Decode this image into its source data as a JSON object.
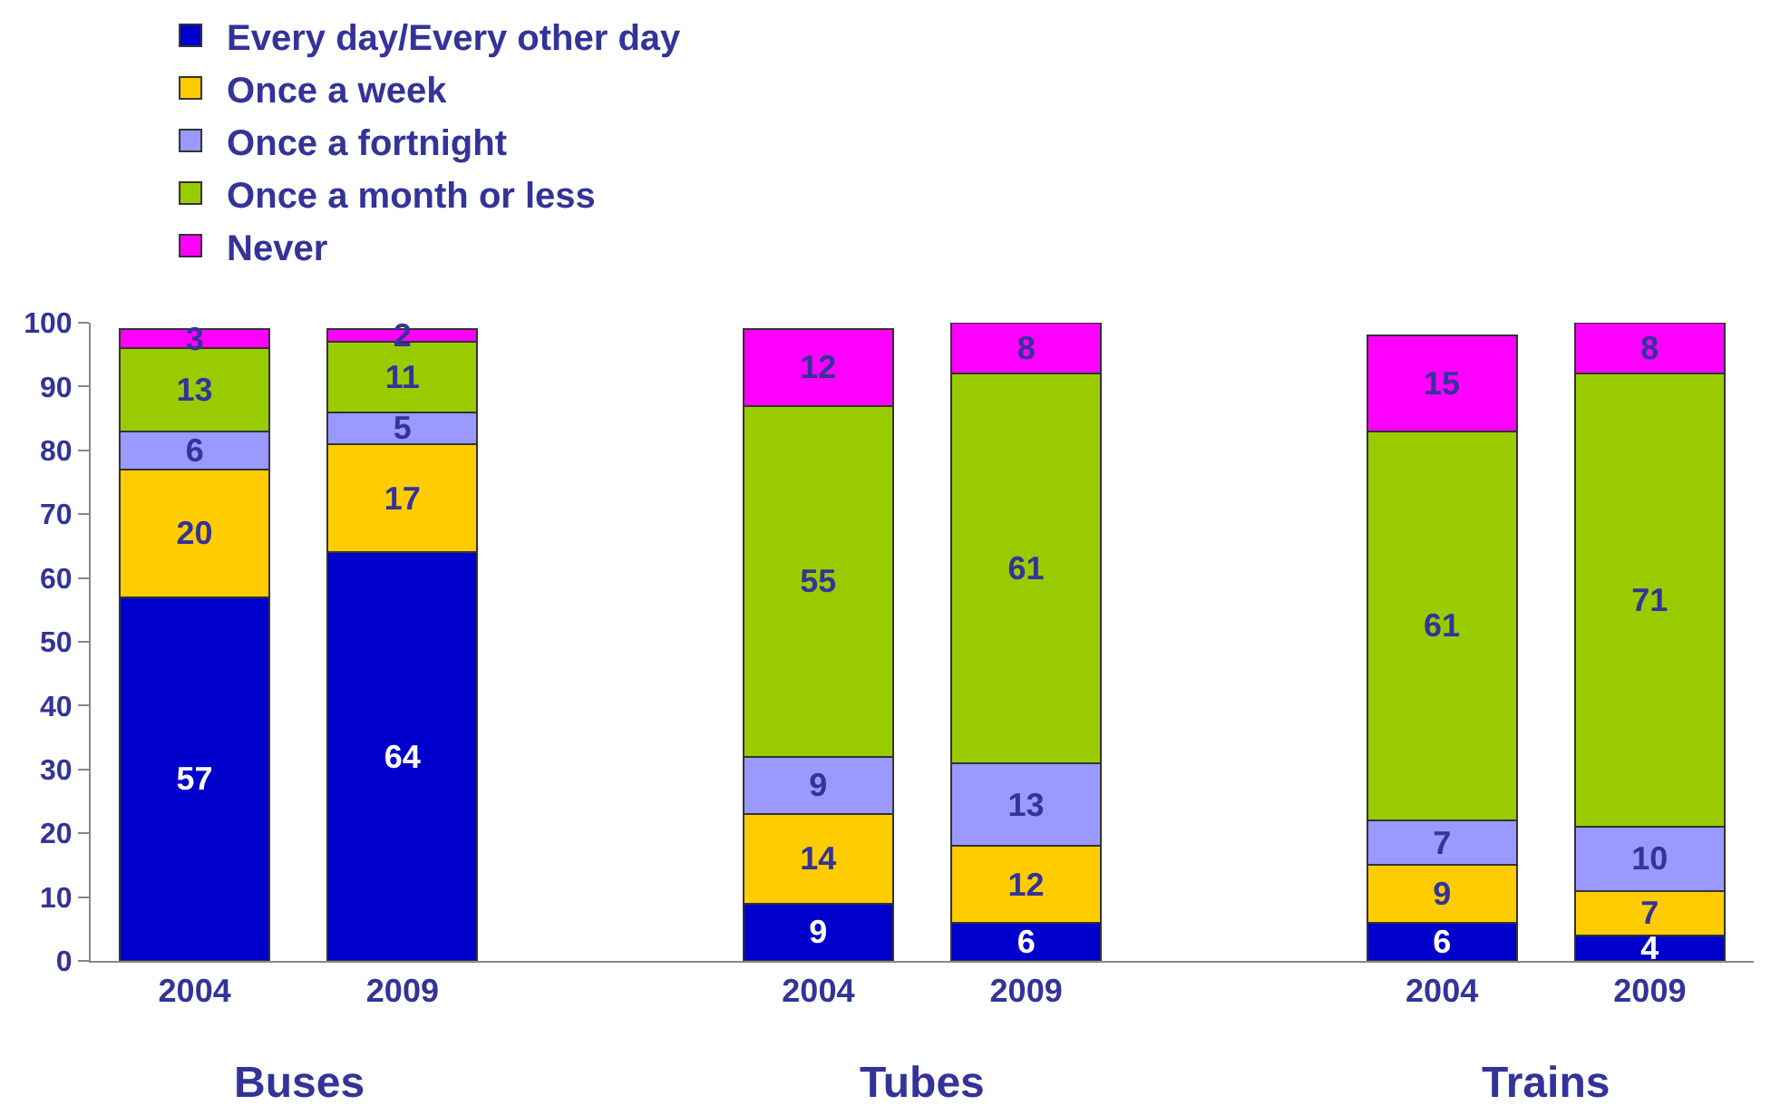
{
  "chart_data": {
    "type": "bar",
    "stacked": true,
    "data_labels": true,
    "legend": "top",
    "categories": [
      "2004",
      "2009",
      null,
      "2004",
      "2009",
      null,
      "2004",
      "2009"
    ],
    "ylim": [
      0,
      100
    ],
    "yticks": [
      0,
      10,
      20,
      30,
      40,
      50,
      60,
      70,
      80,
      90,
      100
    ],
    "series": [
      {
        "name": "Every day/Every other day",
        "color": "#0000cc",
        "values": [
          57,
          64,
          null,
          9,
          6,
          null,
          6,
          4
        ]
      },
      {
        "name": "Once a week",
        "color": "#ffcc00",
        "values": [
          20,
          17,
          null,
          14,
          12,
          null,
          9,
          7
        ]
      },
      {
        "name": "Once a fortnight",
        "color": "#9999ff",
        "values": [
          6,
          5,
          null,
          9,
          13,
          null,
          7,
          10
        ]
      },
      {
        "name": "Once a month or less",
        "color": "#99cc00",
        "values": [
          13,
          11,
          null,
          55,
          61,
          null,
          61,
          71
        ]
      },
      {
        "name": "Never",
        "color": "#ff00ff",
        "values": [
          3,
          2,
          null,
          12,
          8,
          null,
          15,
          8
        ]
      }
    ],
    "annotations": [
      "Buses",
      "Tubes",
      "Trains"
    ]
  }
}
